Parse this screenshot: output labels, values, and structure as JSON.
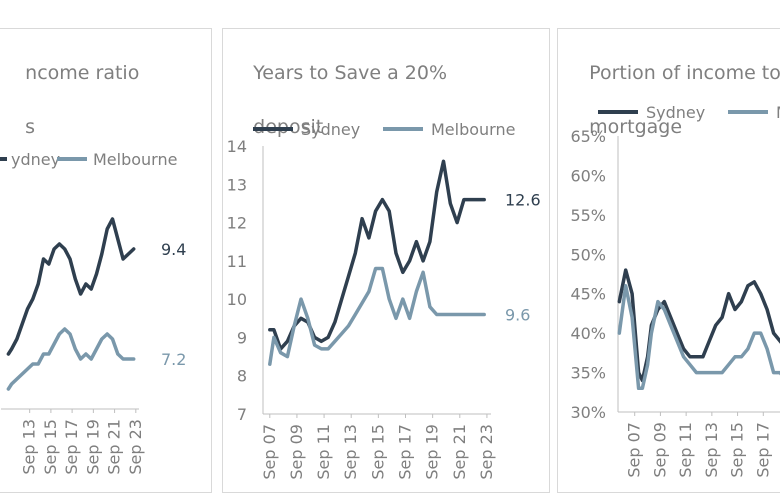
{
  "colors": {
    "sydney": "#2f3f4f",
    "melbourne": "#7a98ab",
    "axis": "#bfbfbf",
    "text": "#7f7f7f"
  },
  "panels": [
    {
      "title_lines": [
        "ncome ratio",
        "s"
      ]
    },
    {
      "title_lines": [
        "Years to Save a 20%",
        "deposit"
      ]
    },
    {
      "title_lines": [
        "Portion of income to",
        "mortgage"
      ]
    }
  ],
  "chart_data": [
    {
      "type": "line",
      "title": "ncome ratio s",
      "xticks": [
        "Sep 13",
        "Sep 15",
        "Sep 17",
        "Sep 19",
        "Sep 21",
        "Sep 23"
      ],
      "legend": [
        "ydney",
        "Melbourne"
      ],
      "series": [
        {
          "name": "Sydney",
          "x": [
            2011.7,
            2012.0,
            2012.5,
            2013.0,
            2013.5,
            2014.0,
            2014.5,
            2015.0,
            2015.5,
            2016.0,
            2016.5,
            2017.0,
            2017.5,
            2018.0,
            2018.5,
            2019.0,
            2019.5,
            2020.0,
            2020.5,
            2021.0,
            2021.5,
            2022.0,
            2022.5,
            2023.0,
            2023.5
          ],
          "values": [
            7.3,
            7.4,
            7.6,
            7.9,
            8.2,
            8.4,
            8.7,
            9.2,
            9.1,
            9.4,
            9.5,
            9.4,
            9.2,
            8.8,
            8.5,
            8.7,
            8.6,
            8.9,
            9.3,
            9.8,
            10.0,
            9.6,
            9.2,
            9.3,
            9.4
          ]
        },
        {
          "name": "Melbourne",
          "x": [
            2011.7,
            2012.0,
            2012.5,
            2013.0,
            2013.5,
            2014.0,
            2014.5,
            2015.0,
            2015.5,
            2016.0,
            2016.5,
            2017.0,
            2017.5,
            2018.0,
            2018.5,
            2019.0,
            2019.5,
            2020.0,
            2020.5,
            2021.0,
            2021.5,
            2022.0,
            2022.5,
            2023.0,
            2023.5
          ],
          "values": [
            6.6,
            6.7,
            6.8,
            6.9,
            7.0,
            7.1,
            7.1,
            7.3,
            7.3,
            7.5,
            7.7,
            7.8,
            7.7,
            7.4,
            7.2,
            7.3,
            7.2,
            7.4,
            7.6,
            7.7,
            7.6,
            7.3,
            7.2,
            7.2,
            7.2
          ]
        }
      ],
      "end_labels": [
        "9.4",
        "7.2"
      ]
    },
    {
      "type": "line",
      "title": "Years to Save a 20% deposit",
      "xticks": [
        "Sep 07",
        "Sep 09",
        "Sep 11",
        "Sep 13",
        "Sep 15",
        "Sep 17",
        "Sep 19",
        "Sep 21",
        "Sep 23"
      ],
      "yticks": [
        "7",
        "8",
        "9",
        "10",
        "11",
        "12",
        "13",
        "14"
      ],
      "ylim": [
        7,
        14
      ],
      "legend": [
        "Sydney",
        "Melbourne"
      ],
      "series": [
        {
          "name": "Sydney",
          "x": [
            2007.7,
            2008.0,
            2008.5,
            2009.0,
            2009.5,
            2010.0,
            2010.5,
            2011.0,
            2011.5,
            2012.0,
            2012.5,
            2013.0,
            2013.5,
            2014.0,
            2014.5,
            2015.0,
            2015.5,
            2016.0,
            2016.5,
            2017.0,
            2017.5,
            2018.0,
            2018.5,
            2019.0,
            2019.5,
            2020.0,
            2020.5,
            2021.0,
            2021.5,
            2022.0,
            2022.5,
            2023.0,
            2023.5
          ],
          "values": [
            9.2,
            9.2,
            8.7,
            8.9,
            9.3,
            9.5,
            9.4,
            9.0,
            8.9,
            9.0,
            9.4,
            10.0,
            10.6,
            11.2,
            12.1,
            11.6,
            12.3,
            12.6,
            12.3,
            11.2,
            10.7,
            11.0,
            11.5,
            11.0,
            11.5,
            12.8,
            13.6,
            12.5,
            12.0,
            12.6,
            12.6,
            12.6,
            12.6
          ],
          "x_note": ""
        },
        {
          "name": "Melbourne",
          "x": [
            2007.7,
            2008.0,
            2008.5,
            2009.0,
            2009.5,
            2010.0,
            2010.5,
            2011.0,
            2011.5,
            2012.0,
            2012.5,
            2013.0,
            2013.5,
            2014.0,
            2014.5,
            2015.0,
            2015.5,
            2016.0,
            2016.5,
            2017.0,
            2017.5,
            2018.0,
            2018.5,
            2019.0,
            2019.5,
            2020.0,
            2020.5,
            2021.0,
            2021.5,
            2022.0,
            2022.5,
            2023.0,
            2023.5
          ],
          "values": [
            8.3,
            9.0,
            8.6,
            8.5,
            9.3,
            10.0,
            9.5,
            8.8,
            8.7,
            8.7,
            8.9,
            9.1,
            9.3,
            9.6,
            9.9,
            10.2,
            10.8,
            10.8,
            10.0,
            9.5,
            10.0,
            9.5,
            10.2,
            10.7,
            9.8,
            9.6,
            9.6,
            9.6,
            9.6,
            9.6,
            9.6,
            9.6,
            9.6
          ]
        }
      ],
      "end_labels": [
        "12.6",
        "9.6"
      ]
    },
    {
      "type": "line",
      "title": "Portion of income to mortgage",
      "xticks": [
        "Sep 07",
        "Sep 09",
        "Sep 11",
        "Sep 13",
        "Sep 15",
        "Sep 17",
        "Sep 19"
      ],
      "yticks": [
        "30%",
        "35%",
        "40%",
        "45%",
        "50%",
        "55%",
        "60%",
        "65%"
      ],
      "ylim": [
        30,
        65
      ],
      "legend": [
        "Sydney",
        "M"
      ],
      "series": [
        {
          "name": "Sydney",
          "x": [
            2006.5,
            2007.0,
            2007.5,
            2008.0,
            2008.3,
            2008.7,
            2009.0,
            2009.5,
            2010.0,
            2010.5,
            2011.0,
            2011.5,
            2012.0,
            2012.5,
            2013.0,
            2013.5,
            2014.0,
            2014.5,
            2015.0,
            2015.5,
            2016.0,
            2016.5,
            2017.0,
            2017.5,
            2018.0,
            2018.5,
            2019.0,
            2019.5,
            2020.0
          ],
          "values": [
            44,
            48,
            45,
            35,
            34,
            37,
            41,
            43,
            44,
            42,
            40,
            38,
            37,
            37,
            37,
            39,
            41,
            42,
            45,
            43,
            44,
            46,
            46.5,
            45,
            43,
            40,
            39,
            38,
            37
          ]
        },
        {
          "name": "Melbourne",
          "x": [
            2006.5,
            2007.0,
            2007.5,
            2008.0,
            2008.3,
            2008.7,
            2009.0,
            2009.5,
            2010.0,
            2010.5,
            2011.0,
            2011.5,
            2012.0,
            2012.5,
            2013.0,
            2013.5,
            2014.0,
            2014.5,
            2015.0,
            2015.5,
            2016.0,
            2016.5,
            2017.0,
            2017.5,
            2018.0,
            2018.5,
            2019.0,
            2019.5,
            2020.0
          ],
          "values": [
            40,
            46,
            42,
            33,
            33,
            36,
            40,
            44,
            43,
            41,
            39,
            37,
            36,
            35,
            35,
            35,
            35,
            35,
            36,
            37,
            37,
            38,
            40,
            40,
            38,
            35,
            35,
            34,
            34
          ]
        }
      ],
      "end_labels": []
    }
  ]
}
